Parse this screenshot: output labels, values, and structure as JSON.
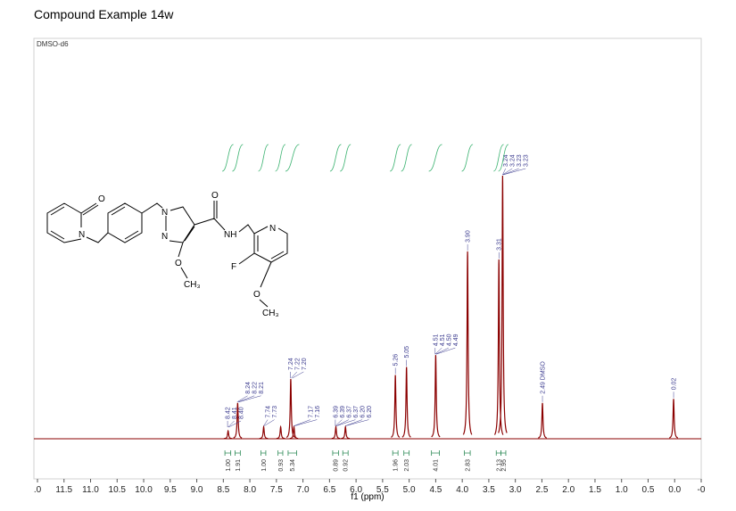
{
  "title": "Compound Example 14w",
  "chart_data": {
    "type": "spectrum",
    "annotation": "DMSO-d6",
    "xlabel": "f1 (ppm)",
    "xlim": [
      12,
      -0.5
    ],
    "ylim": [
      0,
      100
    ],
    "xticks": [
      {
        "value": 12,
        "label": ".0"
      },
      11.5,
      {
        "value": 11,
        "label": "11.0"
      },
      10.5,
      {
        "value": 10,
        "label": "10.0"
      },
      9.5,
      {
        "value": 9,
        "label": "9.0"
      },
      8.5,
      {
        "value": 8,
        "label": "8.0"
      },
      7.5,
      {
        "value": 7,
        "label": "7.0"
      },
      6.5,
      {
        "value": 6,
        "label": "6.0"
      },
      5.5,
      {
        "value": 5,
        "label": "5.0"
      },
      4.5,
      {
        "value": 4,
        "label": "4.0"
      },
      3.5,
      {
        "value": 3,
        "label": "3.0"
      },
      2.5,
      {
        "value": 2,
        "label": "2.0"
      },
      1.5,
      {
        "value": 1,
        "label": "1.0"
      },
      0.5,
      {
        "value": 0,
        "label": "0.0"
      },
      {
        "value": -0.5,
        "label": "-0"
      }
    ],
    "color": "#8b0000",
    "x": [
      8.41,
      8.23,
      7.74,
      7.42,
      7.23,
      7.17,
      6.38,
      6.2,
      5.26,
      5.05,
      4.5,
      3.9,
      3.31,
      3.24,
      2.49,
      0.02
    ],
    "values": [
      2,
      9,
      3,
      3,
      15,
      3,
      3,
      3,
      16,
      18,
      21,
      47,
      45,
      66,
      9,
      10
    ],
    "peak_labels": [
      {
        "value": 8.42,
        "label": "8.42"
      },
      {
        "value": 8.41,
        "label": "8.41"
      },
      {
        "value": 8.4,
        "label": "8.40"
      },
      {
        "value": 8.24,
        "label": "8.24"
      },
      {
        "value": 8.22,
        "label": "8.22"
      },
      {
        "value": 8.21,
        "label": "8.21"
      },
      {
        "value": 7.74,
        "label": "7.74"
      },
      {
        "value": 7.73,
        "label": "7.73"
      },
      {
        "value": 7.24,
        "label": "7.24"
      },
      {
        "value": 7.22,
        "label": "7.22"
      },
      {
        "value": 7.2,
        "label": "7.20"
      },
      {
        "value": 7.17,
        "label": "7.17"
      },
      {
        "value": 7.16,
        "label": "7.16"
      },
      {
        "value": 6.39,
        "label": "6.39"
      },
      {
        "value": 6.39,
        "label": "6.39"
      },
      {
        "value": 6.37,
        "label": "6.37"
      },
      {
        "value": 6.37,
        "label": "6.37"
      },
      {
        "value": 6.2,
        "label": "6.20"
      },
      {
        "value": 6.2,
        "label": "6.20"
      },
      {
        "value": 5.26,
        "label": "5.26"
      },
      {
        "value": 5.05,
        "label": "5.05"
      },
      {
        "value": 4.51,
        "label": "4.51"
      },
      {
        "value": 4.51,
        "label": "4.51"
      },
      {
        "value": 4.5,
        "label": "4.50"
      },
      {
        "value": 4.49,
        "label": "4.49"
      },
      {
        "value": 3.9,
        "label": "3.90"
      },
      {
        "value": 3.31,
        "label": "3.31"
      },
      {
        "value": 3.24,
        "label": "3.24"
      },
      {
        "value": 3.24,
        "label": "3.24"
      },
      {
        "value": 3.23,
        "label": "3.23"
      },
      {
        "value": 3.23,
        "label": "3.23"
      },
      {
        "value": 2.49,
        "label": "2.49 DMSO"
      },
      {
        "value": 0.02,
        "label": "0.02"
      }
    ],
    "integrals": [
      {
        "label": "1.00",
        "from": 8.47,
        "to": 8.36
      },
      {
        "label": "1.91",
        "from": 8.28,
        "to": 8.18
      },
      {
        "label": "1.00",
        "from": 7.79,
        "to": 7.7
      },
      {
        "label": "0.93",
        "from": 7.47,
        "to": 7.38
      },
      {
        "label": "5.34",
        "from": 7.28,
        "to": 7.12
      },
      {
        "label": "0.89",
        "from": 6.44,
        "to": 6.33
      },
      {
        "label": "0.92",
        "from": 6.25,
        "to": 6.15
      },
      {
        "label": "1.96",
        "from": 5.31,
        "to": 5.21
      },
      {
        "label": "2.03",
        "from": 5.1,
        "to": 5.0
      },
      {
        "label": "4.01",
        "from": 4.58,
        "to": 4.43
      },
      {
        "label": "2.83",
        "from": 3.96,
        "to": 3.85
      },
      {
        "label": "2.13",
        "from": 3.36,
        "to": 3.27
      },
      {
        "label": "2.95",
        "from": 3.27,
        "to": 3.18
      }
    ]
  },
  "structure": {
    "labels": [
      "O",
      "N",
      "N",
      "N",
      "O",
      "NH",
      "N",
      "F",
      "O",
      "CH₃",
      "O",
      "CH₃"
    ]
  }
}
